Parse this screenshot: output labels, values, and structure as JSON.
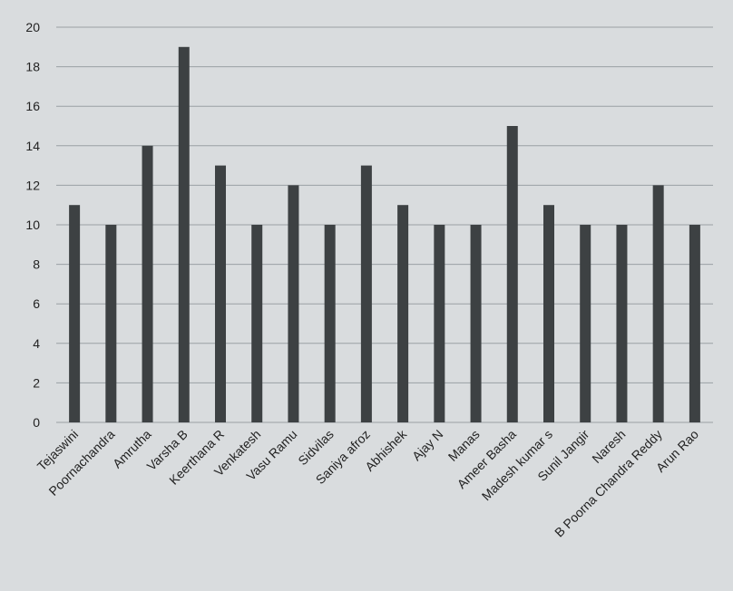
{
  "chart_data": {
    "type": "bar",
    "categories": [
      "Tejaswini",
      "Poornachandra",
      "Amrutha",
      "Varsha B",
      "Keerthana R",
      "Venkatesh",
      "Vasu  Ramu",
      "Sidvilas",
      "Saniya afroz",
      "Abhishek",
      "Ajay N",
      "Manas",
      "Ameer Basha",
      "Madesh kumar s",
      "Sunil Jangir",
      "Naresh",
      "B Poorna Chandra Reddy",
      "Arun Rao"
    ],
    "values": [
      11,
      10,
      14,
      19,
      13,
      10,
      12,
      10,
      13,
      11,
      10,
      10,
      15,
      11,
      10,
      10,
      12,
      10
    ],
    "title": "",
    "xlabel": "",
    "ylabel": "",
    "ylim": [
      0,
      20
    ],
    "yticks": [
      "0",
      "2",
      "4",
      "6",
      "8",
      "10",
      "12",
      "14",
      "16",
      "18",
      "20"
    ],
    "grid": true,
    "bar_color": "#3d4143",
    "grid_color": "#9aa0a4",
    "background": "#d9dcde"
  }
}
